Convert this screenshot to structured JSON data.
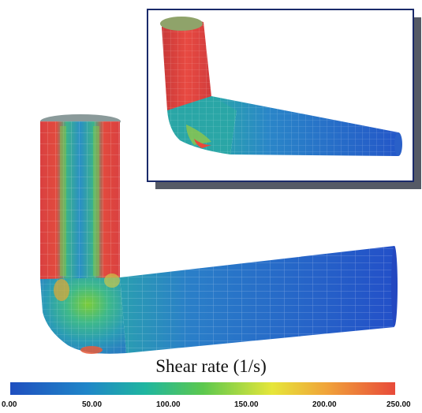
{
  "colorbar": {
    "title": "Shear rate (1/s)",
    "ticks": [
      "0.00",
      "50.00",
      "100.00",
      "150.00",
      "200.00",
      "250.00"
    ],
    "min": 0,
    "max": 250,
    "stops": [
      "#1f4fbf",
      "#1f86c8",
      "#1fb6a0",
      "#5cc84e",
      "#e6e63a",
      "#f0a43a",
      "#e84a3a"
    ]
  },
  "views": [
    {
      "id": "main-view",
      "label": ""
    },
    {
      "id": "inset-view",
      "label": ""
    }
  ]
}
